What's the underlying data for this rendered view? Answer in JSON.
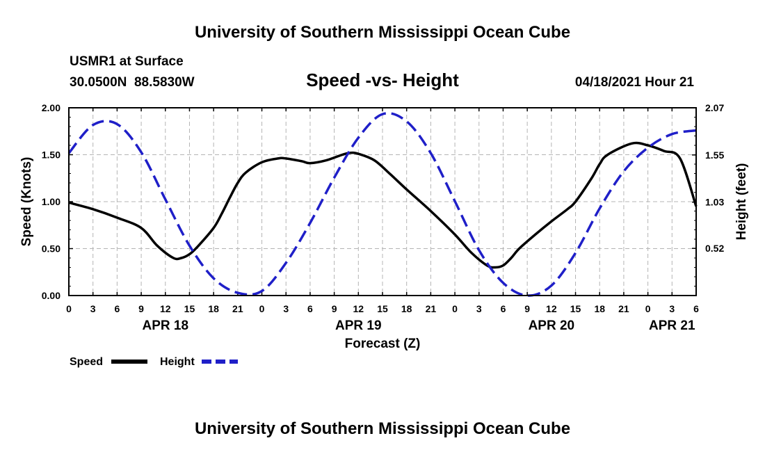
{
  "header": {
    "title": "University of Southern Mississippi Ocean Cube",
    "station": "USMR1 at Surface",
    "coords": "30.0500N  88.5830W",
    "chart_name": "Speed -vs- Height",
    "datetime": "04/18/2021 Hour 21"
  },
  "footer": {
    "title": "University of Southern Mississippi Ocean Cube"
  },
  "legend": {
    "speed_label": "Speed",
    "height_label": "Height"
  },
  "colors": {
    "speed": "#000000",
    "height": "#1f1fc8",
    "grid": "#b4b4b4"
  },
  "chart_data": {
    "type": "line",
    "title": "Speed -vs- Height",
    "xlabel": "Forecast (Z)",
    "ylabel_left": "Speed (Knots)",
    "ylabel_right": "Height (feet)",
    "x_unit": "hours since APR 18 00Z",
    "xlim": [
      0,
      78
    ],
    "ylim_left": [
      0,
      2
    ],
    "ylim_right": [
      0,
      2.07
    ],
    "x_ticks": [
      0,
      3,
      6,
      9,
      12,
      15,
      18,
      21,
      24,
      27,
      30,
      33,
      36,
      39,
      42,
      45,
      48,
      51,
      54,
      57,
      60,
      63,
      66,
      69,
      72,
      75,
      78
    ],
    "x_tick_labels": [
      "0",
      "3",
      "6",
      "9",
      "12",
      "15",
      "18",
      "21",
      "0",
      "3",
      "6",
      "9",
      "12",
      "15",
      "18",
      "21",
      "0",
      "3",
      "6",
      "9",
      "12",
      "15",
      "18",
      "21",
      "0",
      "3",
      "6"
    ],
    "date_labels": [
      {
        "x": 12,
        "label": "APR 18"
      },
      {
        "x": 36,
        "label": "APR 19"
      },
      {
        "x": 60,
        "label": "APR 20"
      },
      {
        "x": 75,
        "label": "APR 21"
      }
    ],
    "y_left_ticks": [
      0,
      0.5,
      1,
      1.5,
      2
    ],
    "y_left_tick_labels": [
      "0.00",
      "0.50",
      "1.00",
      "1.50",
      "2.00"
    ],
    "y_right_ticks": [
      0.52,
      1.03,
      1.55,
      2.07
    ],
    "y_right_tick_labels": [
      "0.52",
      "1.03",
      "1.55",
      "2.07"
    ],
    "grid": true,
    "series": [
      {
        "name": "Speed",
        "axis": "left",
        "style": "solid",
        "x": [
          0,
          3,
          6,
          9,
          11,
          13,
          14,
          15,
          16,
          18,
          19,
          20,
          21,
          22,
          24,
          26,
          27,
          29,
          30,
          32,
          34,
          35,
          36,
          38,
          40,
          42,
          45,
          48,
          50,
          52,
          53,
          54,
          55,
          56,
          58,
          60,
          62,
          63,
          65,
          66,
          67,
          70,
          72,
          74,
          76,
          78
        ],
        "values": [
          0.99,
          0.92,
          0.83,
          0.72,
          0.53,
          0.4,
          0.4,
          0.44,
          0.52,
          0.72,
          0.87,
          1.04,
          1.2,
          1.31,
          1.42,
          1.46,
          1.46,
          1.43,
          1.41,
          1.44,
          1.5,
          1.52,
          1.51,
          1.44,
          1.29,
          1.13,
          0.9,
          0.65,
          0.46,
          0.32,
          0.3,
          0.32,
          0.4,
          0.5,
          0.65,
          0.79,
          0.92,
          1.0,
          1.25,
          1.4,
          1.5,
          1.62,
          1.6,
          1.54,
          1.46,
          0.95
        ]
      },
      {
        "name": "Height",
        "axis": "right",
        "style": "dashed",
        "x": [
          0,
          3,
          6,
          9,
          12,
          15,
          18,
          21,
          24,
          27,
          30,
          33,
          36,
          39,
          42,
          45,
          48,
          51,
          54,
          57,
          60,
          63,
          66,
          69,
          72,
          75,
          78
        ],
        "values": [
          1.57,
          1.88,
          1.89,
          1.58,
          1.06,
          0.55,
          0.19,
          0.03,
          0.05,
          0.36,
          0.8,
          1.3,
          1.74,
          2.0,
          1.92,
          1.57,
          1.04,
          0.5,
          0.14,
          0.0,
          0.11,
          0.47,
          0.96,
          1.37,
          1.63,
          1.78,
          1.82
        ]
      }
    ]
  }
}
